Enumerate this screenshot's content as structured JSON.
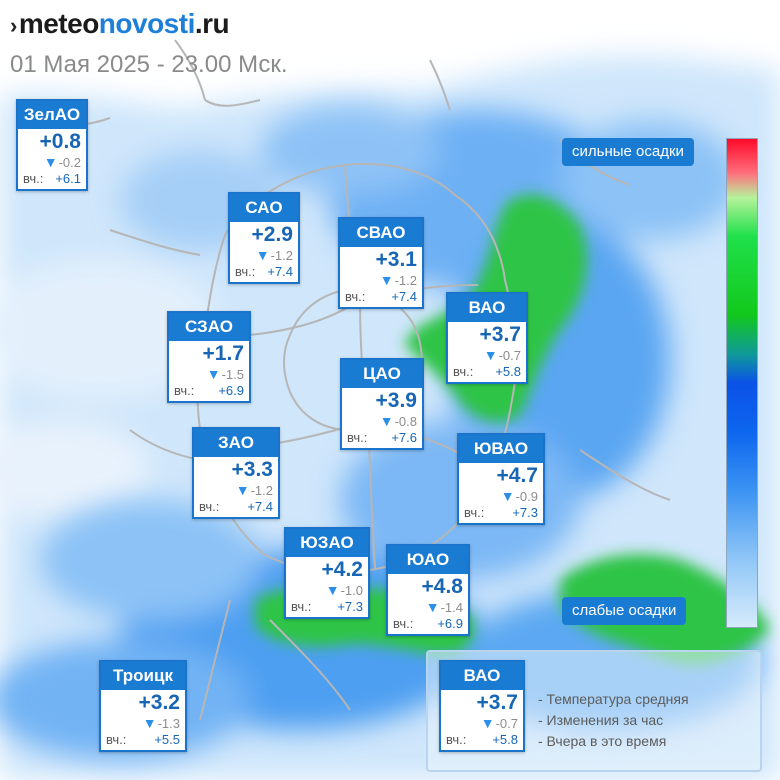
{
  "header": {
    "logo_prefix": "meteo",
    "logo_middle": "novosti",
    "logo_suffix": ".ru",
    "subtitle": "01 Мая 2025 - 23.00 Мск."
  },
  "colors": {
    "card_header": "#1a7bd3",
    "card_border": "#1a74cc",
    "temperature_text": "#1766b5",
    "change_triangle": "#2b8ee8",
    "precip_light": "#cfe7fb",
    "precip_medium": "#3d97ef",
    "precip_heavy": "#24c23a",
    "road_lines": "#b8b8b8"
  },
  "icons": {
    "logo_mark": "chevron-right-icon",
    "change_arrow": "down-triangle-icon"
  },
  "yesterday_label": "вч.:",
  "districts": [
    {
      "name": "ЗелАО",
      "temp": "+0.8",
      "change": "-0.2",
      "yesterday": "+6.1"
    },
    {
      "name": "САО",
      "temp": "+2.9",
      "change": "-1.2",
      "yesterday": "+7.4"
    },
    {
      "name": "СВАО",
      "temp": "+3.1",
      "change": "-1.2",
      "yesterday": "+7.4"
    },
    {
      "name": "ВАО",
      "temp": "+3.7",
      "change": "-0.7",
      "yesterday": "+5.8"
    },
    {
      "name": "СЗАО",
      "temp": "+1.7",
      "change": "-1.5",
      "yesterday": "+6.9"
    },
    {
      "name": "ЦАО",
      "temp": "+3.9",
      "change": "-0.8",
      "yesterday": "+7.6"
    },
    {
      "name": "ЗАО",
      "temp": "+3.3",
      "change": "-1.2",
      "yesterday": "+7.4"
    },
    {
      "name": "ЮВАО",
      "temp": "+4.7",
      "change": "-0.9",
      "yesterday": "+7.3"
    },
    {
      "name": "ЮЗАО",
      "temp": "+4.2",
      "change": "-1.0",
      "yesterday": "+7.3"
    },
    {
      "name": "ЮАО",
      "temp": "+4.8",
      "change": "-1.4",
      "yesterday": "+6.9"
    },
    {
      "name": "Троицк",
      "temp": "+3.2",
      "change": "-1.3",
      "yesterday": "+5.5"
    }
  ],
  "scale": {
    "top_label": "сильные осадки",
    "bottom_label": "слабые осадки"
  },
  "legend": {
    "sample": {
      "name": "ВАО",
      "temp": "+3.7",
      "change": "-0.7",
      "yesterday": "+5.8"
    },
    "items": [
      "- Температура средняя",
      "- Изменения за час",
      "- Вчера в это время"
    ]
  }
}
